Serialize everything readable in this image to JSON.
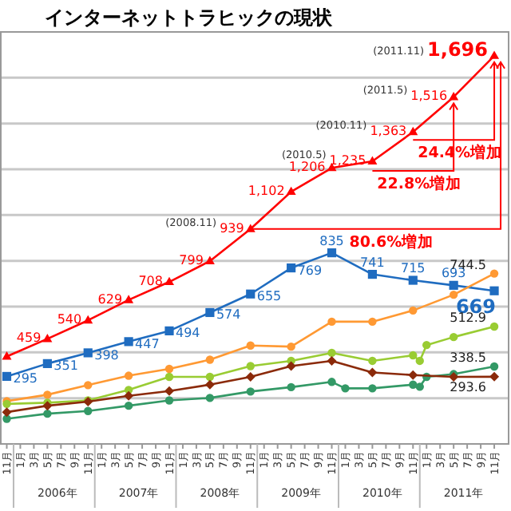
{
  "chart_data": {
    "type": "line",
    "title": "インターネットトラヒックの現状",
    "xlim": [
      "2005-10",
      "2012-01"
    ],
    "ylim": [
      0,
      1800
    ],
    "yticks": [
      {
        "value": 200,
        "label": null
      },
      {
        "value": 400,
        "label": null
      },
      {
        "value": 600,
        "label": null
      },
      {
        "value": 800,
        "label": null
      },
      {
        "value": 1000,
        "label": null
      },
      {
        "value": 1200,
        "label": null
      },
      {
        "value": 1400,
        "label": null
      },
      {
        "value": 1600,
        "label": null
      }
    ],
    "xticks": [
      {
        "value": "2005-11",
        "label": "11月"
      },
      {
        "value": "2006-01",
        "label": "1月"
      },
      {
        "value": "2006-03",
        "label": "3月"
      },
      {
        "value": "2006-05",
        "label": "5月"
      },
      {
        "value": "2006-07",
        "label": "7月"
      },
      {
        "value": "2006-09",
        "label": "9月"
      },
      {
        "value": "2006-11",
        "label": "11月"
      },
      {
        "value": "2007-01",
        "label": "1月"
      },
      {
        "value": "2007-03",
        "label": "3月"
      },
      {
        "value": "2007-05",
        "label": "5月"
      },
      {
        "value": "2007-07",
        "label": "7月"
      },
      {
        "value": "2007-09",
        "label": "9月"
      },
      {
        "value": "2007-11",
        "label": "11月"
      },
      {
        "value": "2008-01",
        "label": "1月"
      },
      {
        "value": "2008-03",
        "label": "3月"
      },
      {
        "value": "2008-05",
        "label": "5月"
      },
      {
        "value": "2008-07",
        "label": "7月"
      },
      {
        "value": "2008-09",
        "label": "9月"
      },
      {
        "value": "2008-11",
        "label": "11月"
      },
      {
        "value": "2009-01",
        "label": "1月"
      },
      {
        "value": "2009-03",
        "label": "3月"
      },
      {
        "value": "2009-05",
        "label": "5月"
      },
      {
        "value": "2009-07",
        "label": "7月"
      },
      {
        "value": "2009-09",
        "label": "9月"
      },
      {
        "value": "2009-11",
        "label": "11月"
      },
      {
        "value": "2010-01",
        "label": "1月"
      },
      {
        "value": "2010-03",
        "label": "3月"
      },
      {
        "value": "2010-05",
        "label": "5月"
      },
      {
        "value": "2010-07",
        "label": "7月"
      },
      {
        "value": "2010-09",
        "label": "9月"
      },
      {
        "value": "2010-11",
        "label": "11月"
      },
      {
        "value": "2011-01",
        "label": "1月"
      },
      {
        "value": "2011-03",
        "label": "3月"
      },
      {
        "value": "2011-05",
        "label": "5月"
      },
      {
        "value": "2011-07",
        "label": "7月"
      },
      {
        "value": "2011-09",
        "label": "9月"
      },
      {
        "value": "2011-11",
        "label": "11月"
      }
    ],
    "grid": "y",
    "line_style": "solid",
    "series": [
      {
        "color": "#ff0000",
        "marker": "triangle",
        "x": [
          "2005-11",
          "2006-05",
          "2006-11",
          "2007-05",
          "2007-11",
          "2008-05",
          "2008-11",
          "2009-05",
          "2009-11",
          "2010-05",
          "2010-11",
          "2011-05",
          "2011-11"
        ],
        "values": [
          382,
          459,
          540,
          629,
          708,
          799,
          939,
          1102,
          1206,
          1235,
          1363,
          1516,
          1696
        ],
        "value_labels": [
          null,
          "459",
          "540",
          "629",
          "708",
          "799",
          "939",
          "1,102",
          "1,206",
          "1,235",
          "1,363",
          "1,516",
          "1,696"
        ]
      },
      {
        "color": "#1f6cc0",
        "marker": "square",
        "x": [
          "2005-11",
          "2006-05",
          "2006-11",
          "2007-05",
          "2007-11",
          "2008-05",
          "2008-11",
          "2009-05",
          "2009-11",
          "2010-05",
          "2010-11",
          "2011-05",
          "2011-11"
        ],
        "values": [
          295,
          351,
          398,
          447,
          494,
          574,
          655,
          769,
          835,
          741,
          715,
          693,
          669
        ],
        "value_labels": [
          "295",
          "351",
          "398",
          "447",
          "494",
          "574",
          "655",
          "769",
          "835",
          "741",
          "715",
          "693",
          "669"
        ]
      },
      {
        "color": "#ff9933",
        "marker": "circle",
        "x": [
          "2005-11",
          "2006-05",
          "2006-11",
          "2007-05",
          "2007-11",
          "2008-05",
          "2008-11",
          "2009-05",
          "2009-11",
          "2010-05",
          "2010-11",
          "2011-05",
          "2011-11"
        ],
        "values": [
          187,
          215,
          257,
          298,
          328,
          368,
          430,
          425,
          534,
          534,
          583,
          652,
          744.5
        ],
        "value_labels": [
          null,
          null,
          null,
          null,
          null,
          null,
          null,
          null,
          null,
          null,
          null,
          null,
          "744.5"
        ]
      },
      {
        "color": "#99cc33",
        "marker": "circle",
        "x": [
          "2005-11",
          "2006-05",
          "2006-11",
          "2007-05",
          "2007-11",
          "2008-05",
          "2008-11",
          "2009-05",
          "2009-11",
          "2010-05",
          "2010-11",
          "2010-12",
          "2011-01",
          "2011-05",
          "2011-11"
        ],
        "values": [
          175,
          180,
          190,
          236,
          293,
          293,
          340,
          363,
          398,
          363,
          387,
          363,
          432,
          467,
          512.9
        ],
        "value_labels": [
          null,
          null,
          null,
          null,
          null,
          null,
          null,
          null,
          null,
          null,
          null,
          null,
          null,
          null,
          "512.9"
        ]
      },
      {
        "color": "#339966",
        "marker": "circle",
        "x": [
          "2005-11",
          "2006-05",
          "2006-11",
          "2007-05",
          "2007-11",
          "2008-05",
          "2008-11",
          "2009-05",
          "2009-11",
          "2010-01",
          "2010-05",
          "2010-11",
          "2010-12",
          "2011-01",
          "2011-05",
          "2011-11"
        ],
        "values": [
          110,
          132,
          144,
          167,
          190,
          201,
          229,
          248,
          271,
          243,
          243,
          259,
          250,
          293,
          305,
          338.5
        ],
        "value_labels": [
          null,
          null,
          null,
          null,
          null,
          null,
          null,
          null,
          null,
          null,
          null,
          null,
          null,
          null,
          null,
          "338.5"
        ]
      },
      {
        "color": "#8b2a0a",
        "marker": "diamond",
        "x": [
          "2005-11",
          "2006-05",
          "2006-11",
          "2007-05",
          "2007-11",
          "2008-05",
          "2008-11",
          "2009-05",
          "2009-11",
          "2010-05",
          "2010-11",
          "2011-05",
          "2011-11"
        ],
        "values": [
          139,
          167,
          185,
          210,
          231,
          259,
          293,
          340,
          363,
          312,
          301,
          293,
          293.6
        ],
        "value_labels": [
          null,
          null,
          null,
          null,
          null,
          null,
          null,
          null,
          null,
          null,
          null,
          null,
          "293.6"
        ]
      }
    ],
    "annotations": [
      "24.4%増加",
      "22.8%増加",
      "80.6%増加",
      "(2011.11)",
      "(2011.5)",
      "(2010.11)",
      "(2010.5)",
      "(2008.11)",
      "2006年",
      "2007年",
      "2008年",
      "2009年",
      "2010年",
      "2011年"
    ]
  }
}
